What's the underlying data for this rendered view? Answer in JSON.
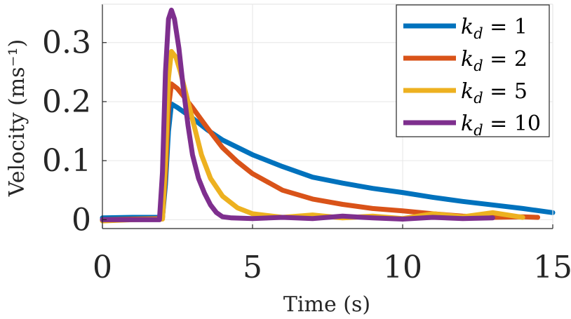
{
  "chart_data": {
    "type": "line",
    "title": "",
    "xlabel": "Time (s)",
    "ylabel": "Velocity (ms⁻¹)",
    "xlim": [
      0,
      15
    ],
    "ylim": [
      -0.015,
      0.365
    ],
    "xticks": [
      0,
      5,
      10,
      15
    ],
    "xtick_labels": [
      "0",
      "5",
      "10",
      "15"
    ],
    "yticks": [
      0,
      0.1,
      0.2,
      0.3
    ],
    "ytick_labels": [
      "0",
      "0.1",
      "0.2",
      "0.3"
    ],
    "grid": true,
    "legend_position": "top-right",
    "series": [
      {
        "name": "k_d = 1",
        "label": "k",
        "sub": "d",
        "rhs": " = 1",
        "color": "#0072BD",
        "x": [
          0,
          1.0,
          2.0,
          2.1,
          2.2,
          2.3,
          2.5,
          3.0,
          3.5,
          4.0,
          5.0,
          6.0,
          7.0,
          8.0,
          9.0,
          10.0,
          11.0,
          12.0,
          13.0,
          14.0,
          15.0
        ],
        "y": [
          0.003,
          0.004,
          0.004,
          0.06,
          0.15,
          0.196,
          0.19,
          0.172,
          0.152,
          0.135,
          0.11,
          0.09,
          0.072,
          0.062,
          0.053,
          0.046,
          0.038,
          0.031,
          0.025,
          0.019,
          0.012
        ]
      },
      {
        "name": "k_d = 2",
        "label": "k",
        "sub": "d",
        "rhs": " = 2",
        "color": "#D95319",
        "x": [
          0,
          1.0,
          2.0,
          2.1,
          2.2,
          2.3,
          2.5,
          3.0,
          3.5,
          4.0,
          4.5,
          5.0,
          6.0,
          7.0,
          8.0,
          9.0,
          10.0,
          11.0,
          12.0,
          13.0,
          14.0,
          14.5
        ],
        "y": [
          0.0,
          0.001,
          0.002,
          0.08,
          0.19,
          0.23,
          0.222,
          0.19,
          0.155,
          0.122,
          0.098,
          0.078,
          0.05,
          0.035,
          0.026,
          0.019,
          0.015,
          0.01,
          0.006,
          0.004,
          0.005,
          0.004
        ]
      },
      {
        "name": "k_d = 5",
        "label": "k",
        "sub": "d",
        "rhs": " = 5",
        "color": "#EDB120",
        "x": [
          0,
          1.0,
          2.0,
          2.1,
          2.2,
          2.3,
          2.45,
          2.6,
          2.8,
          3.0,
          3.3,
          3.6,
          4.0,
          4.5,
          5.0,
          6.0,
          7.0,
          8.0,
          9.0,
          10.0,
          11.0,
          12.0,
          13.0,
          14.0
        ],
        "y": [
          -0.002,
          0.0,
          0.001,
          0.1,
          0.24,
          0.285,
          0.275,
          0.25,
          0.21,
          0.17,
          0.11,
          0.07,
          0.04,
          0.02,
          0.01,
          0.004,
          0.008,
          0.003,
          0.006,
          0.002,
          0.01,
          0.005,
          0.012,
          0.004
        ]
      },
      {
        "name": "k_d = 10",
        "label": "k",
        "sub": "d",
        "rhs": " = 10",
        "color": "#7E2F8E",
        "x": [
          0,
          1.0,
          1.9,
          2.0,
          2.1,
          2.2,
          2.3,
          2.4,
          2.55,
          2.7,
          2.85,
          3.0,
          3.2,
          3.4,
          3.6,
          3.8,
          4.0,
          4.3,
          5.0,
          6.0,
          7.0,
          8.0,
          9.0,
          10.0,
          11.0,
          12.0,
          13.0
        ],
        "y": [
          0.0,
          0.0,
          0.0,
          0.08,
          0.25,
          0.34,
          0.355,
          0.34,
          0.29,
          0.22,
          0.16,
          0.11,
          0.07,
          0.045,
          0.025,
          0.012,
          0.005,
          0.003,
          0.002,
          0.004,
          0.002,
          0.006,
          0.003,
          0.001,
          0.004,
          0.002,
          0.003
        ]
      }
    ]
  }
}
